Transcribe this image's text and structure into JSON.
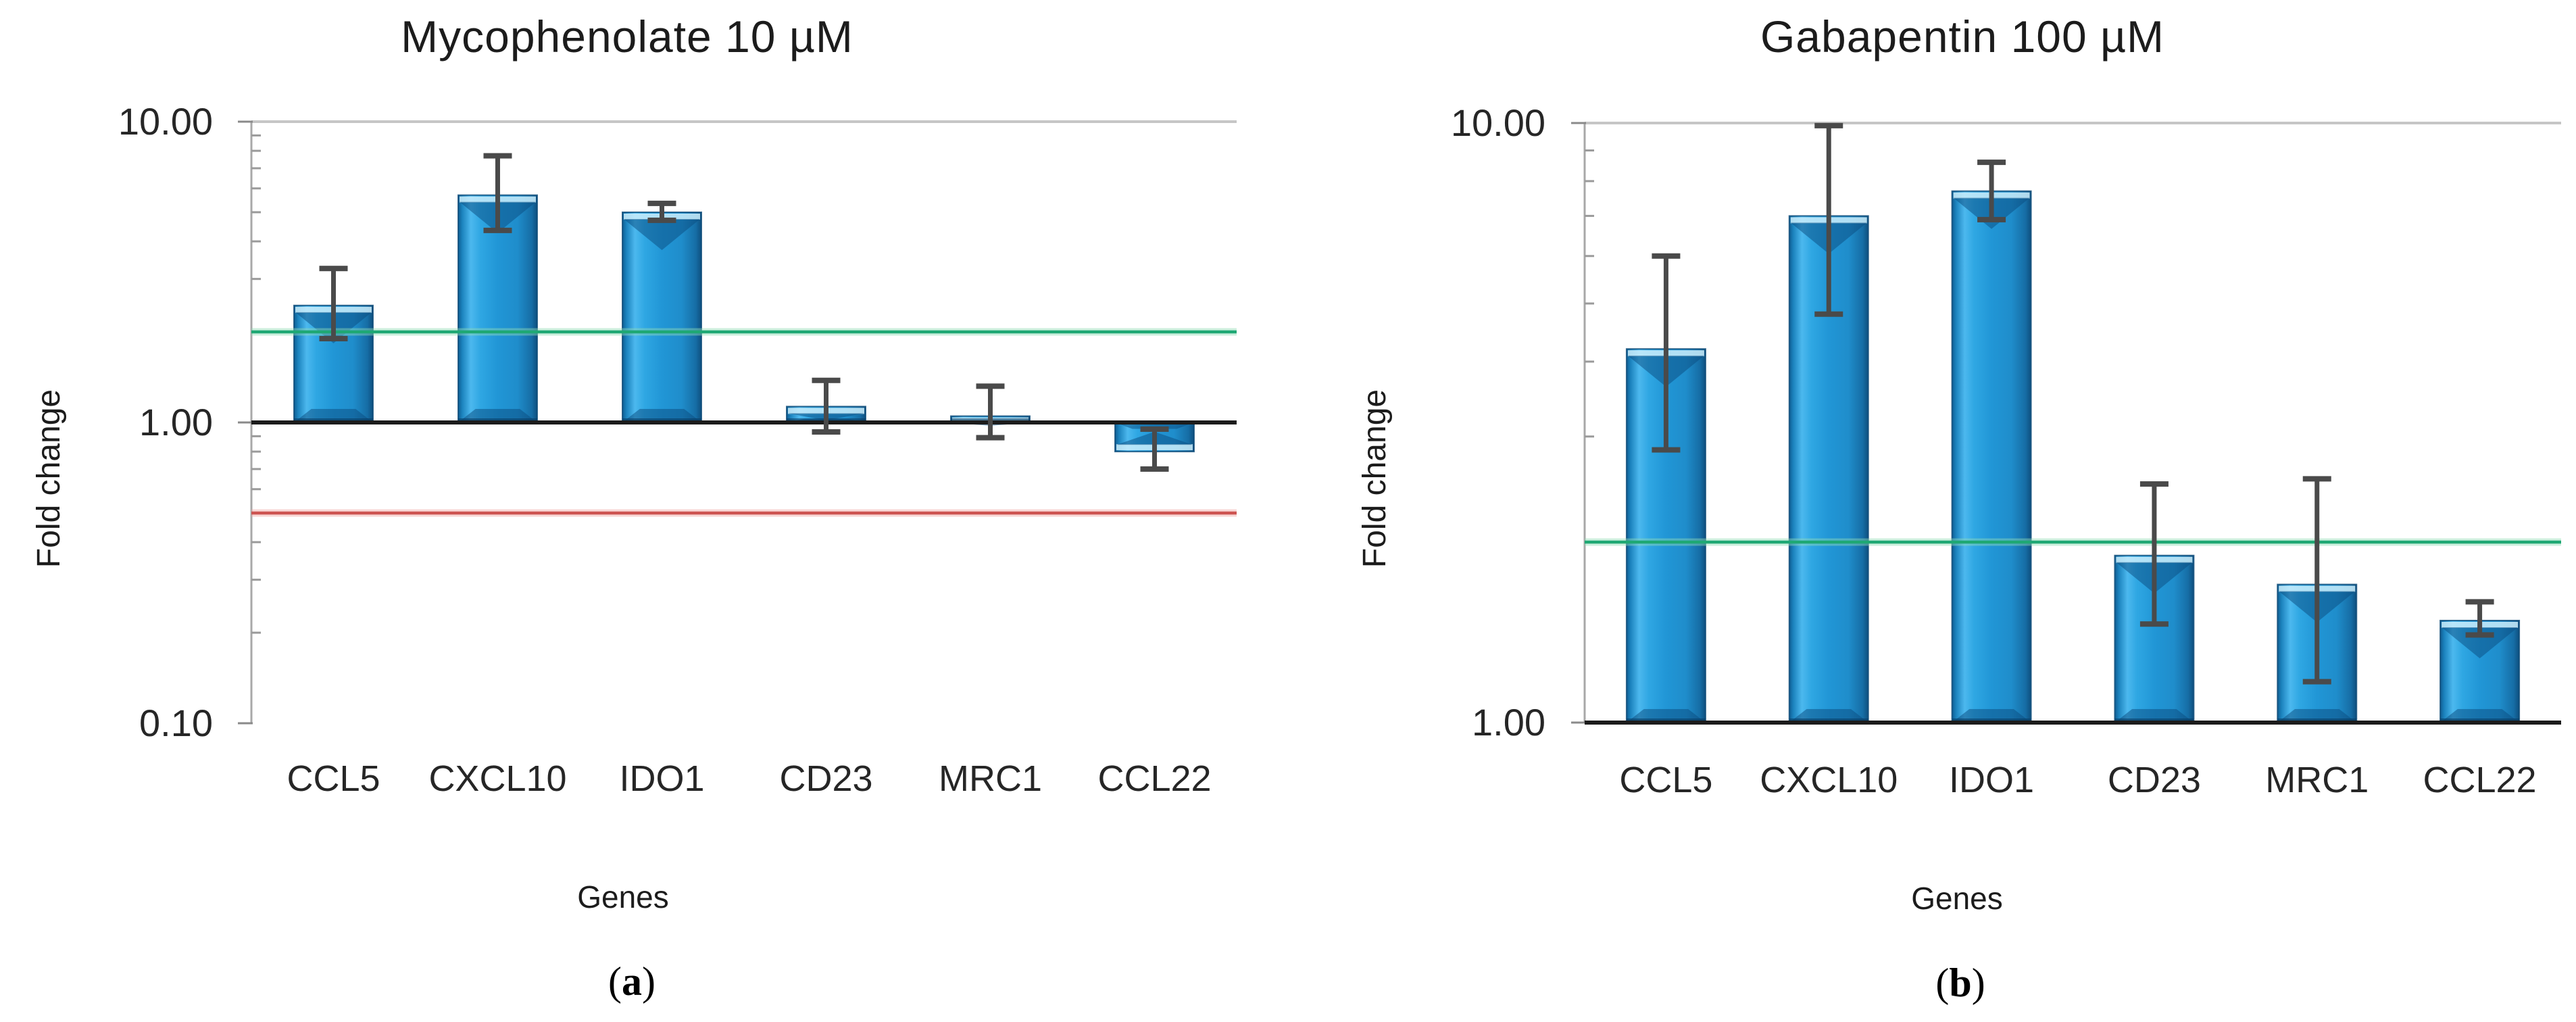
{
  "figure": {
    "description": "Two-panel gene expression fold-change bar charts",
    "colors": {
      "bar_blue": "#2aa0dc",
      "bar_edge_dark": "#0e4f7e",
      "error_bar": "#4a4a4a",
      "gridline": "#c6c6c6",
      "axis_line": "#a8a8a8",
      "baseline": "#1c1c1c",
      "threshold_up_green": "#1fa874",
      "threshold_down_red": "#cd5451"
    }
  },
  "chart_data": [
    {
      "type": "bar",
      "panel": "a",
      "title": "Mycophenolate 10 µM",
      "xlabel": "Genes",
      "ylabel": "Fold change",
      "yscale": "log",
      "ylim": [
        0.1,
        10
      ],
      "grid": "top-decade-only",
      "legend": "none",
      "ytick_labels": [
        "10.00",
        "1.00",
        "0.10"
      ],
      "ytick_values": [
        10,
        1,
        0.1
      ],
      "categories": [
        "CCL5",
        "CXCL10",
        "IDO1",
        "CD23",
        "MRC1",
        "CCL22"
      ],
      "values": [
        2.45,
        5.7,
        5.0,
        1.13,
        1.05,
        0.8
      ],
      "error_low": [
        1.9,
        4.35,
        4.7,
        0.93,
        0.89,
        0.7
      ],
      "error_high": [
        3.25,
        7.7,
        5.35,
        1.38,
        1.32,
        0.95
      ],
      "ref_lines": [
        {
          "value": 2.0,
          "color": "#1fa874",
          "halo": "#8fdcb6",
          "name": "upregulation-threshold"
        },
        {
          "value": 0.5,
          "color": "#cd5451",
          "halo": "#f0a7a4",
          "name": "downregulation-threshold"
        }
      ],
      "caption_pre": "(",
      "caption_letter": "a",
      "caption_post": ")"
    },
    {
      "type": "bar",
      "panel": "b",
      "title": "Gabapentin 100 µM",
      "xlabel": "Genes",
      "ylabel": "Fold change",
      "yscale": "log",
      "ylim": [
        1,
        10
      ],
      "grid": "top-decade-only",
      "legend": "none",
      "ytick_labels": [
        "10.00",
        "1.00"
      ],
      "ytick_values": [
        10,
        1
      ],
      "categories": [
        "CCL5",
        "CXCL10",
        "IDO1",
        "CD23",
        "MRC1",
        "CCL22"
      ],
      "values": [
        4.2,
        7.0,
        7.7,
        1.9,
        1.7,
        1.48
      ],
      "error_low": [
        2.85,
        4.8,
        6.9,
        1.46,
        1.17,
        1.4
      ],
      "error_high": [
        6.0,
        9.9,
        8.6,
        2.5,
        2.55,
        1.59
      ],
      "ref_lines": [
        {
          "value": 2.0,
          "color": "#1fa874",
          "halo": "#8fdcb6",
          "name": "upregulation-threshold"
        }
      ],
      "caption_pre": "(",
      "caption_letter": "b",
      "caption_post": ")"
    }
  ]
}
